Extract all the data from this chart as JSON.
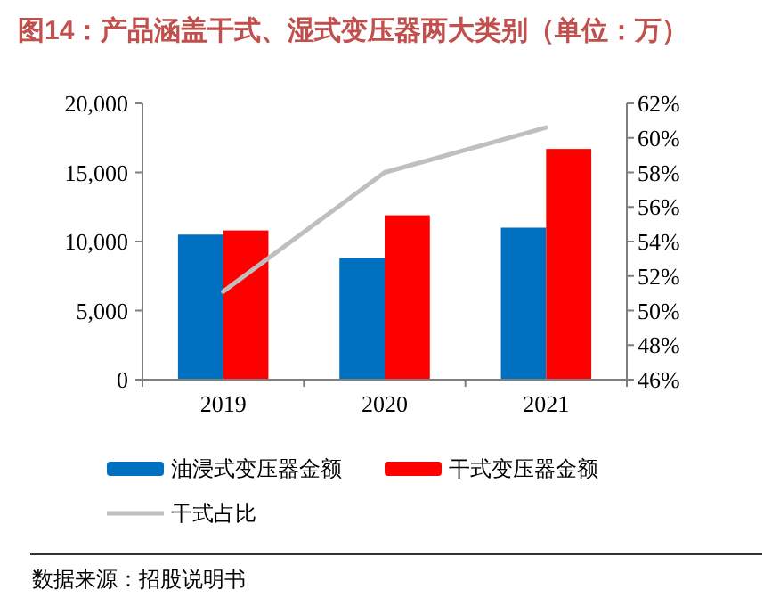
{
  "chart_data": {
    "type": "bar",
    "title": "图14：产品涵盖干式、湿式变压器两大类别（单位：万）",
    "categories": [
      "2019",
      "2020",
      "2021"
    ],
    "series": [
      {
        "name": "油浸式变压器金额",
        "color": "#0070c0",
        "values": [
          10500,
          8800,
          11000
        ]
      },
      {
        "name": "干式变压器金额",
        "color": "#ff0000",
        "values": [
          10800,
          11900,
          16700
        ]
      },
      {
        "name": "干式占比",
        "type": "line",
        "axis": "y2",
        "color": "#bfbfbf",
        "values": [
          51.1,
          58.0,
          60.6
        ]
      }
    ],
    "ylim": [
      0,
      20000
    ],
    "yticks": [
      0,
      {
        "value": 5000,
        "label": "5,000"
      },
      {
        "value": 10000,
        "label": "10,000"
      },
      {
        "value": 15000,
        "label": "15,000"
      },
      {
        "value": 20000,
        "label": "20,000"
      }
    ],
    "y2lim": [
      46,
      62
    ],
    "y2ticks": [
      {
        "value": 46,
        "label": "46%"
      },
      {
        "value": 48,
        "label": "48%"
      },
      {
        "value": 50,
        "label": "50%"
      },
      {
        "value": 52,
        "label": "52%"
      },
      {
        "value": 54,
        "label": "54%"
      },
      {
        "value": 56,
        "label": "56%"
      },
      {
        "value": 58,
        "label": "58%"
      },
      {
        "value": 60,
        "label": "60%"
      },
      {
        "value": 62,
        "label": "62%"
      }
    ],
    "legend": "bottom",
    "annotations": [
      "数据来源：招股说明书"
    ]
  }
}
